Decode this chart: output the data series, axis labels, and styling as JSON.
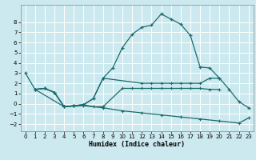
{
  "xlabel": "Humidex (Indice chaleur)",
  "background_color": "#cce9f0",
  "grid_color": "#ffffff",
  "line_color": "#1a6b6b",
  "xlim": [
    -0.5,
    23.5
  ],
  "ylim": [
    -2.7,
    9.7
  ],
  "xticks": [
    0,
    1,
    2,
    3,
    4,
    5,
    6,
    7,
    8,
    9,
    10,
    11,
    12,
    13,
    14,
    15,
    16,
    17,
    18,
    19,
    20,
    21,
    22,
    23
  ],
  "yticks": [
    -2,
    -1,
    0,
    1,
    2,
    3,
    4,
    5,
    6,
    7,
    8
  ],
  "line1_x": [
    0,
    1,
    2,
    3,
    4,
    5,
    6,
    7,
    8,
    9,
    10,
    11,
    12,
    13,
    14,
    15,
    16,
    17,
    18,
    19,
    20,
    21,
    22,
    23
  ],
  "line1_y": [
    3.0,
    1.4,
    1.5,
    1.1,
    -0.3,
    -0.2,
    -0.1,
    0.5,
    2.5,
    3.5,
    5.5,
    6.8,
    7.5,
    7.7,
    8.8,
    8.3,
    7.8,
    6.7,
    3.6,
    3.5,
    2.5,
    1.4,
    0.2,
    -0.4
  ],
  "line2_x": [
    1,
    2,
    3,
    4,
    5,
    6,
    7,
    8,
    12,
    13,
    14,
    15,
    16,
    17,
    18,
    19,
    20
  ],
  "line2_y": [
    1.4,
    1.5,
    1.1,
    -0.3,
    -0.2,
    -0.1,
    0.5,
    2.5,
    2.0,
    2.0,
    2.0,
    2.0,
    2.0,
    2.0,
    2.0,
    2.5,
    2.5
  ],
  "line3_x": [
    1,
    2,
    3,
    4,
    5,
    6,
    7,
    8,
    10,
    11,
    12,
    13,
    14,
    15,
    16,
    17,
    18,
    19,
    20
  ],
  "line3_y": [
    1.4,
    1.5,
    1.1,
    -0.3,
    -0.2,
    -0.1,
    -0.3,
    -0.3,
    1.5,
    1.5,
    1.5,
    1.5,
    1.5,
    1.5,
    1.5,
    1.5,
    1.5,
    1.4,
    1.4
  ],
  "line4_x": [
    1,
    4,
    6,
    8,
    10,
    12,
    14,
    16,
    18,
    20,
    22,
    23
  ],
  "line4_y": [
    1.4,
    -0.3,
    -0.2,
    -0.4,
    -0.7,
    -0.9,
    -1.1,
    -1.3,
    -1.5,
    -1.7,
    -1.9,
    -1.4
  ]
}
